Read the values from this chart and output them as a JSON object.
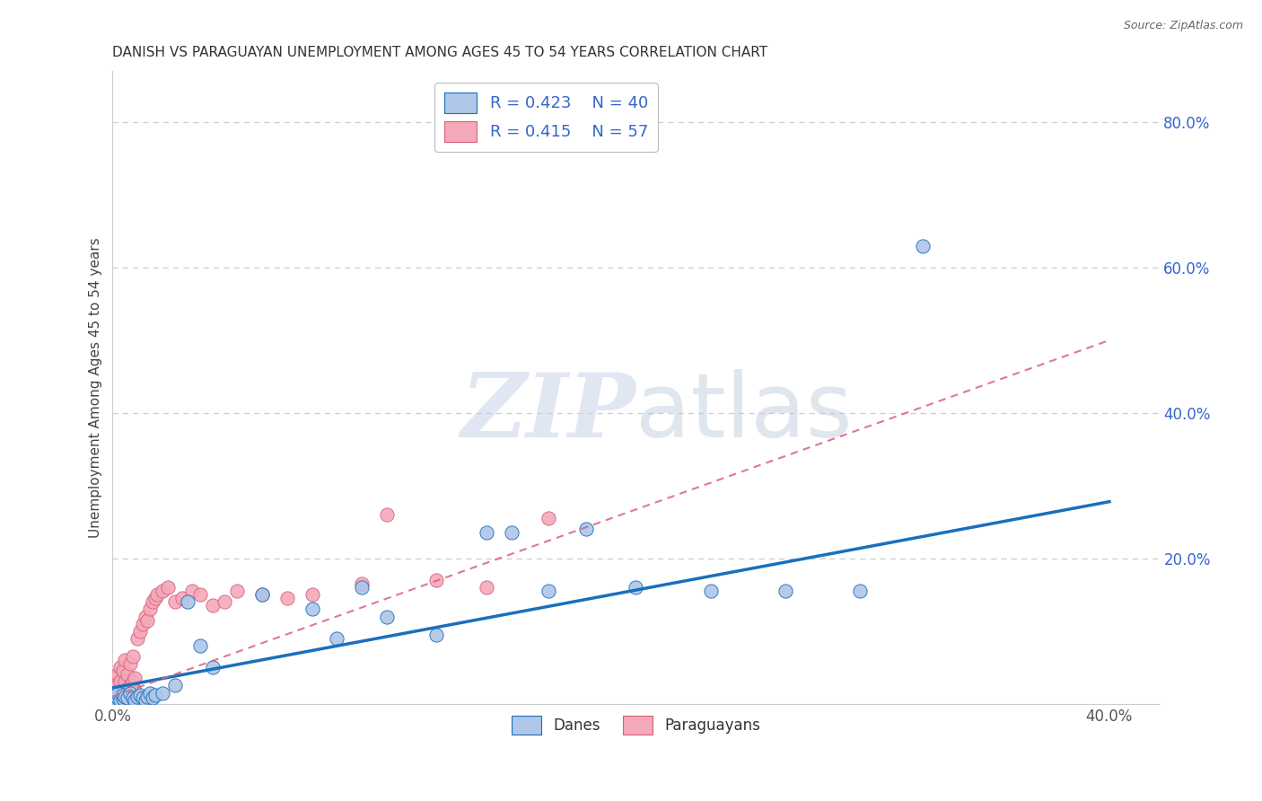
{
  "title": "DANISH VS PARAGUAYAN UNEMPLOYMENT AMONG AGES 45 TO 54 YEARS CORRELATION CHART",
  "source": "Source: ZipAtlas.com",
  "ylabel": "Unemployment Among Ages 45 to 54 years",
  "xlim": [
    0.0,
    0.42
  ],
  "ylim": [
    0.0,
    0.87
  ],
  "yticks_right": [
    0.2,
    0.4,
    0.6,
    0.8
  ],
  "ytick_right_labels": [
    "20.0%",
    "40.0%",
    "60.0%",
    "80.0%"
  ],
  "legend_r1": "R = 0.423",
  "legend_n1": "N = 40",
  "legend_r2": "R = 0.415",
  "legend_n2": "N = 57",
  "color_danes": "#aec6e8",
  "color_paraguayans": "#f4a9b8",
  "color_danes_line": "#1a6fbd",
  "color_paraguayans_line": "#d96080",
  "color_legend_text": "#3366cc",
  "danes_x": [
    0.001,
    0.001,
    0.002,
    0.002,
    0.003,
    0.004,
    0.004,
    0.005,
    0.006,
    0.007,
    0.008,
    0.009,
    0.01,
    0.011,
    0.012,
    0.013,
    0.014,
    0.015,
    0.016,
    0.017,
    0.02,
    0.025,
    0.03,
    0.035,
    0.04,
    0.06,
    0.08,
    0.09,
    0.1,
    0.11,
    0.13,
    0.15,
    0.16,
    0.175,
    0.19,
    0.21,
    0.24,
    0.27,
    0.3,
    0.325
  ],
  "danes_y": [
    0.01,
    0.005,
    0.008,
    0.015,
    0.005,
    0.007,
    0.012,
    0.01,
    0.008,
    0.015,
    0.008,
    0.005,
    0.01,
    0.012,
    0.008,
    0.005,
    0.01,
    0.015,
    0.008,
    0.012,
    0.015,
    0.025,
    0.14,
    0.08,
    0.05,
    0.15,
    0.13,
    0.09,
    0.16,
    0.12,
    0.095,
    0.235,
    0.235,
    0.155,
    0.24,
    0.16,
    0.155,
    0.155,
    0.155,
    0.63
  ],
  "paraguayans_x": [
    0.001,
    0.001,
    0.001,
    0.001,
    0.002,
    0.002,
    0.002,
    0.002,
    0.003,
    0.003,
    0.003,
    0.003,
    0.004,
    0.004,
    0.004,
    0.005,
    0.005,
    0.005,
    0.005,
    0.006,
    0.006,
    0.006,
    0.007,
    0.007,
    0.007,
    0.008,
    0.008,
    0.008,
    0.009,
    0.009,
    0.01,
    0.01,
    0.011,
    0.012,
    0.013,
    0.014,
    0.015,
    0.016,
    0.017,
    0.018,
    0.02,
    0.022,
    0.025,
    0.028,
    0.032,
    0.035,
    0.04,
    0.045,
    0.05,
    0.06,
    0.07,
    0.08,
    0.1,
    0.11,
    0.13,
    0.15,
    0.175
  ],
  "paraguayans_y": [
    0.005,
    0.01,
    0.02,
    0.035,
    0.005,
    0.015,
    0.025,
    0.04,
    0.008,
    0.015,
    0.03,
    0.05,
    0.01,
    0.02,
    0.045,
    0.008,
    0.018,
    0.03,
    0.06,
    0.01,
    0.02,
    0.04,
    0.012,
    0.025,
    0.055,
    0.015,
    0.03,
    0.065,
    0.018,
    0.035,
    0.01,
    0.09,
    0.1,
    0.11,
    0.12,
    0.115,
    0.13,
    0.14,
    0.145,
    0.15,
    0.155,
    0.16,
    0.14,
    0.145,
    0.155,
    0.15,
    0.135,
    0.14,
    0.155,
    0.15,
    0.145,
    0.15,
    0.165,
    0.26,
    0.17,
    0.16,
    0.255
  ],
  "danes_trend_x": [
    0.0,
    0.4
  ],
  "danes_trend_y": [
    0.022,
    0.278
  ],
  "paraguayans_trend_x": [
    0.0,
    0.4
  ],
  "paraguayans_trend_y": [
    0.01,
    0.5
  ],
  "watermark_zip": "ZIP",
  "watermark_atlas": "atlas",
  "background_color": "#ffffff",
  "grid_color": "#cccccc",
  "title_color": "#333333",
  "ylabel_color": "#444444"
}
